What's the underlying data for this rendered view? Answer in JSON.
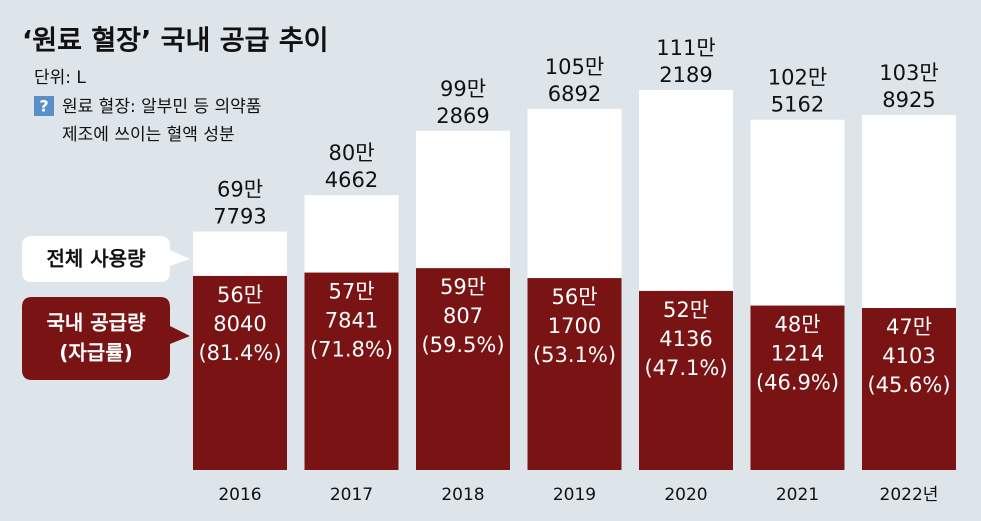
{
  "chart_data": {
    "type": "bar",
    "title": "‘원료 혈장’ 국내 공급 추이",
    "unit": "단위: L",
    "note_icon": "?",
    "note": [
      "원료 혈장: 알부민 등 의약품",
      "제조에 쓰이는 혈액 성분"
    ],
    "categories": [
      "2016",
      "2017",
      "2018",
      "2019",
      "2020",
      "2021",
      "2022년"
    ],
    "series": [
      {
        "name": "전체 사용량",
        "color": "#ffffff",
        "values": [
          697793,
          804662,
          992869,
          1056892,
          1112189,
          1025162,
          1038925
        ],
        "value_labels": [
          [
            "69만",
            "7793"
          ],
          [
            "80만",
            "4662"
          ],
          [
            "99만",
            "2869"
          ],
          [
            "105만",
            "6892"
          ],
          [
            "111만",
            "2189"
          ],
          [
            "102만",
            "5162"
          ],
          [
            "103만",
            "8925"
          ]
        ]
      },
      {
        "name": "국내 공급량",
        "legend_sub": "(자급률)",
        "color": "#7a1313",
        "values": [
          568040,
          577841,
          590807,
          561700,
          524136,
          481214,
          474103
        ],
        "value_labels": [
          [
            "56만",
            "8040",
            "(81.4%)"
          ],
          [
            "57만",
            "7841",
            "(71.8%)"
          ],
          [
            "59만",
            "807",
            "(59.5%)"
          ],
          [
            "56만",
            "1700",
            "(53.1%)"
          ],
          [
            "52만",
            "4136",
            "(47.1%)"
          ],
          [
            "48만",
            "1214",
            "(46.9%)"
          ],
          [
            "47만",
            "4103",
            "(45.6%)"
          ]
        ]
      }
    ]
  }
}
